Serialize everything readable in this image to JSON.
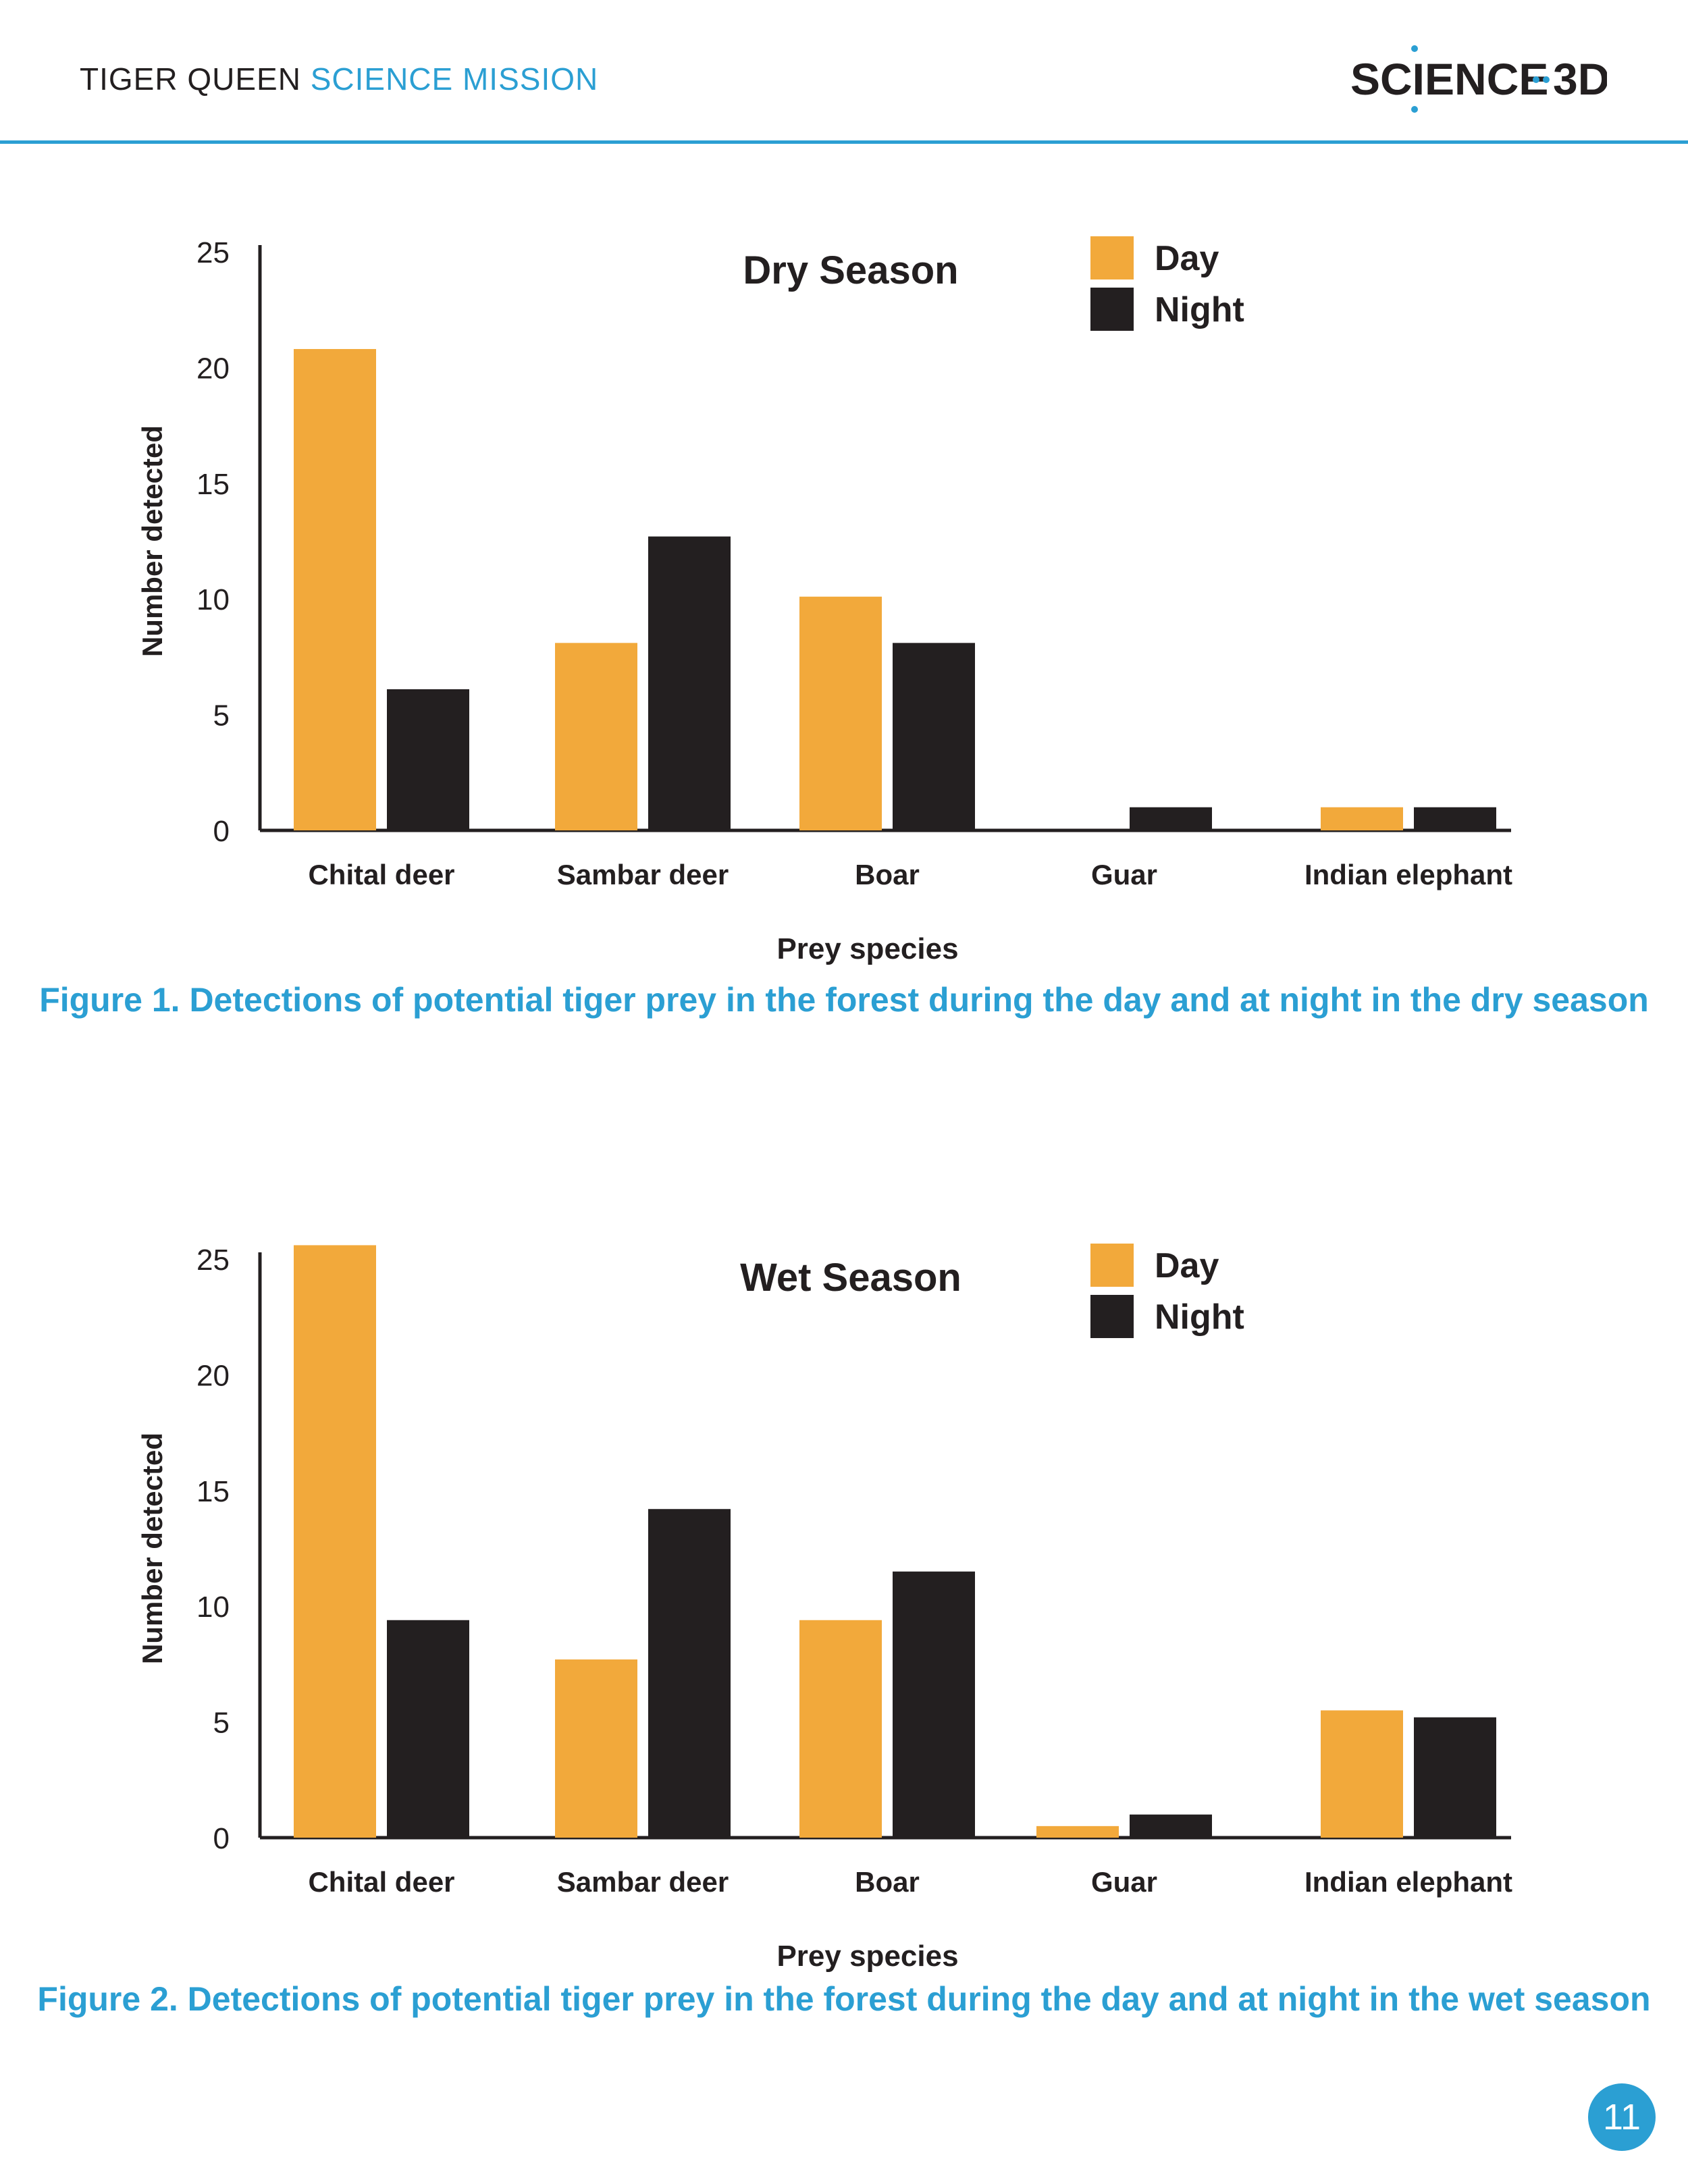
{
  "header": {
    "title_dark": "TIGER QUEEN",
    "title_blue": "SCIENCE MISSION",
    "logo_text_left": "SCIENCE",
    "logo_text_right": "3D"
  },
  "colors": {
    "day": "#f2a93b",
    "night": "#231f20",
    "accent": "#2b9fd3"
  },
  "chart_data": [
    {
      "type": "bar",
      "title": "Dry Season",
      "xlabel": "Prey species",
      "ylabel": "Number detected",
      "ylim": [
        0,
        25
      ],
      "yticks": [
        0,
        5,
        10,
        15,
        20,
        25
      ],
      "categories": [
        "Chital deer",
        "Sambar deer",
        "Boar",
        "Guar",
        "Indian elephant"
      ],
      "series": [
        {
          "name": "Day",
          "values": [
            20.8,
            8.1,
            10.1,
            0,
            1
          ]
        },
        {
          "name": "Night",
          "values": [
            6.1,
            12.7,
            8.1,
            1,
            1
          ]
        }
      ],
      "legend": "top-right",
      "caption": "Figure 1. Detections of potential tiger prey in the forest during the day and at night in the dry season"
    },
    {
      "type": "bar",
      "title": "Wet Season",
      "xlabel": "Prey species",
      "ylabel": "Number detected",
      "ylim": [
        0,
        25
      ],
      "yticks": [
        0,
        5,
        10,
        15,
        20,
        25
      ],
      "categories": [
        "Chital deer",
        "Sambar deer",
        "Boar",
        "Guar",
        "Indian elephant"
      ],
      "series": [
        {
          "name": "Day",
          "values": [
            25.6,
            7.7,
            9.4,
            0.5,
            5.5
          ]
        },
        {
          "name": "Night",
          "values": [
            9.4,
            14.2,
            11.5,
            1,
            5.2
          ]
        }
      ],
      "legend": "top-right",
      "caption": "Figure 2. Detections of potential tiger prey in the forest during the day and at night in the wet season"
    }
  ],
  "page_number": "11"
}
